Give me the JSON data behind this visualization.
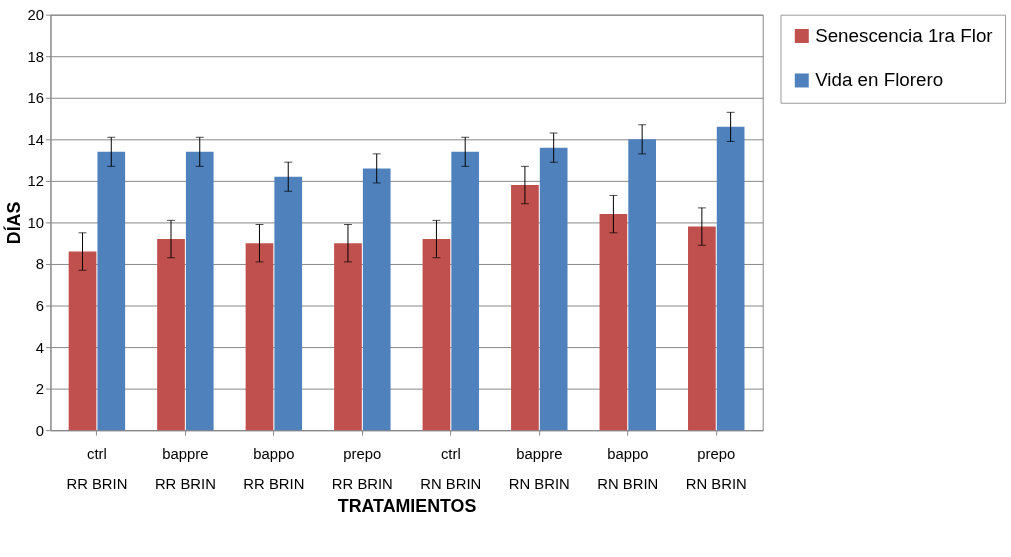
{
  "chart_data": {
    "type": "bar",
    "xlabel": "TRATAMIENTOS",
    "ylabel": "DÍAS",
    "categories": [
      "ctrl\nRR BRIN",
      "bappre\nRR BRIN",
      "bappo\nRR BRIN",
      "prepo\nRR BRIN",
      "ctrl\nRN BRIN",
      "bappre\nRN BRIN",
      "bappo\nRN BRIN",
      "prepo\nRN BRIN"
    ],
    "series": [
      {
        "name": "Senescencia 1ra Flor",
        "color": "#c0504d",
        "values": [
          8.6,
          9.2,
          9.0,
          9.0,
          9.2,
          11.8,
          10.4,
          9.8
        ],
        "errors": [
          0.9,
          0.9,
          0.9,
          0.9,
          0.9,
          0.9,
          0.9,
          0.9
        ]
      },
      {
        "name": "Vida en Florero",
        "color": "#4f81bd",
        "values": [
          13.4,
          13.4,
          12.2,
          12.6,
          13.4,
          13.6,
          14.0,
          14.6
        ],
        "errors": [
          0.7,
          0.7,
          0.7,
          0.7,
          0.7,
          0.7,
          0.7,
          0.7
        ]
      }
    ],
    "ylim": [
      0,
      20
    ],
    "yticks": [
      0,
      2,
      4,
      6,
      8,
      10,
      12,
      14,
      16,
      18,
      20
    ],
    "grid": "y",
    "legend": "right"
  }
}
